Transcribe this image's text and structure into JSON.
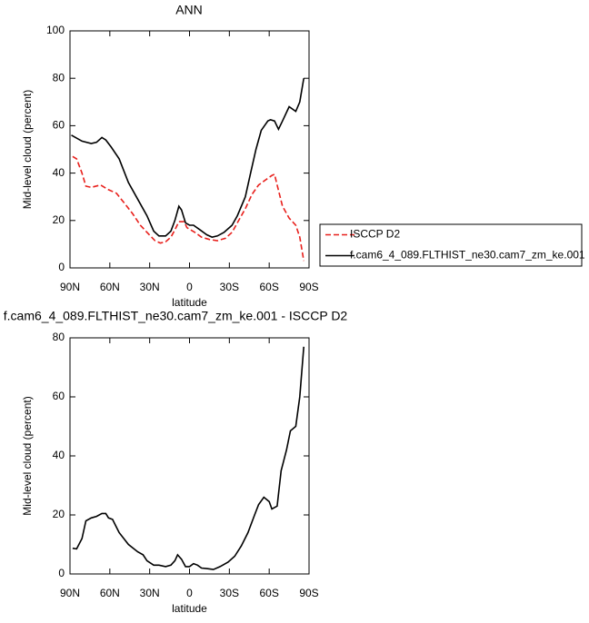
{
  "chart_data": [
    {
      "type": "line",
      "title": "ANN",
      "xlabel": "latitude",
      "ylabel": "Mid-level cloud (percent)",
      "xlim": [
        90,
        -90
      ],
      "ylim": [
        0,
        100
      ],
      "xticks": [
        {
          "value": 90,
          "label": "90N"
        },
        {
          "value": 60,
          "label": "60N"
        },
        {
          "value": 30,
          "label": "30N"
        },
        0,
        {
          "value": -30,
          "label": "30S"
        },
        {
          "value": -60,
          "label": "60S"
        },
        {
          "value": -90,
          "label": "90S"
        }
      ],
      "yticks": [
        0,
        20,
        40,
        60,
        80,
        100
      ],
      "legend": "right",
      "series": [
        {
          "name": "ISCCP D2",
          "color": "#e8201c",
          "dashed": true,
          "x": [
            88,
            85,
            81,
            78,
            74,
            67,
            61,
            55,
            50,
            43,
            37,
            32,
            26,
            22,
            18,
            14,
            11,
            8,
            4,
            2,
            -4,
            -9,
            -15,
            -21,
            -27,
            -32,
            -36,
            -42,
            -47,
            -52,
            -57,
            -62,
            -64,
            -66,
            -70,
            -75,
            -80,
            -83,
            -86
          ],
          "values": [
            47,
            46,
            40,
            34.5,
            34,
            35,
            33,
            31.5,
            28,
            23,
            18,
            15,
            11.5,
            10.5,
            11,
            13,
            16,
            19.5,
            19.5,
            17,
            15,
            13,
            12,
            11.5,
            12.5,
            15,
            19,
            25,
            31,
            35,
            37,
            39,
            39.5,
            35,
            26,
            21,
            18,
            13,
            3
          ]
        },
        {
          "name": "f.cam6_4_089.FLTHIST_ne30.cam7_zm_ke.001",
          "color": "#000000",
          "dashed": false,
          "x": [
            89,
            81,
            74,
            70,
            66,
            63,
            59,
            53,
            46,
            39,
            32,
            27,
            23,
            18,
            14,
            11,
            8,
            6,
            3,
            0,
            -3,
            -8,
            -13,
            -17,
            -21,
            -26,
            -32,
            -36,
            -42,
            -46,
            -50,
            -54,
            -59,
            -61,
            -64,
            -67,
            -70,
            -75,
            -80,
            -83,
            -86
          ],
          "values": [
            56,
            53.5,
            52.5,
            53,
            55,
            54,
            51,
            46,
            36,
            29,
            22,
            15.5,
            13.5,
            13.5,
            15.5,
            20,
            26,
            24.5,
            19,
            18,
            18,
            16,
            14,
            13,
            13.5,
            15,
            18,
            22,
            30,
            40,
            50,
            58,
            62,
            62.5,
            62,
            58.5,
            62,
            68,
            66,
            70,
            80
          ]
        }
      ]
    },
    {
      "type": "line",
      "title": "f.cam6_4_089.FLTHIST_ne30.cam7_zm_ke.001 - ISCCP D2",
      "xlabel": "latitude",
      "ylabel": "Mid-level cloud (percent)",
      "xlim": [
        90,
        -90
      ],
      "ylim": [
        0,
        80
      ],
      "xticks": [
        {
          "value": 90,
          "label": "90N"
        },
        {
          "value": 60,
          "label": "60N"
        },
        {
          "value": 30,
          "label": "30N"
        },
        0,
        {
          "value": -30,
          "label": "30S"
        },
        {
          "value": -60,
          "label": "60S"
        },
        {
          "value": -90,
          "label": "90S"
        }
      ],
      "yticks": [
        0,
        20,
        40,
        60,
        80
      ],
      "series": [
        {
          "color": "#000000",
          "dashed": false,
          "x": [
            88,
            85,
            81,
            78,
            74,
            70,
            66,
            63,
            61,
            58,
            53,
            46,
            39,
            35,
            32,
            27,
            23,
            18,
            14,
            11,
            9,
            6,
            3,
            0,
            -3,
            -6,
            -9,
            -13,
            -18,
            -23,
            -29,
            -34,
            -39,
            -44,
            -49,
            -52,
            -56,
            -60,
            -62,
            -66,
            -69,
            -73,
            -76,
            -80,
            -83,
            -86
          ],
          "values": [
            8.7,
            8.5,
            12,
            18,
            19,
            19.5,
            20.5,
            20.5,
            19,
            18.5,
            14,
            10,
            7.5,
            6.5,
            4.5,
            3,
            3,
            2.5,
            3,
            4.5,
            6.5,
            5,
            2.5,
            2.5,
            3.5,
            3,
            2,
            1.8,
            1.5,
            2.5,
            4,
            6,
            9.5,
            14,
            20,
            23.5,
            26,
            24.5,
            22,
            23,
            35,
            42,
            48.5,
            50,
            60,
            77
          ]
        }
      ]
    }
  ]
}
